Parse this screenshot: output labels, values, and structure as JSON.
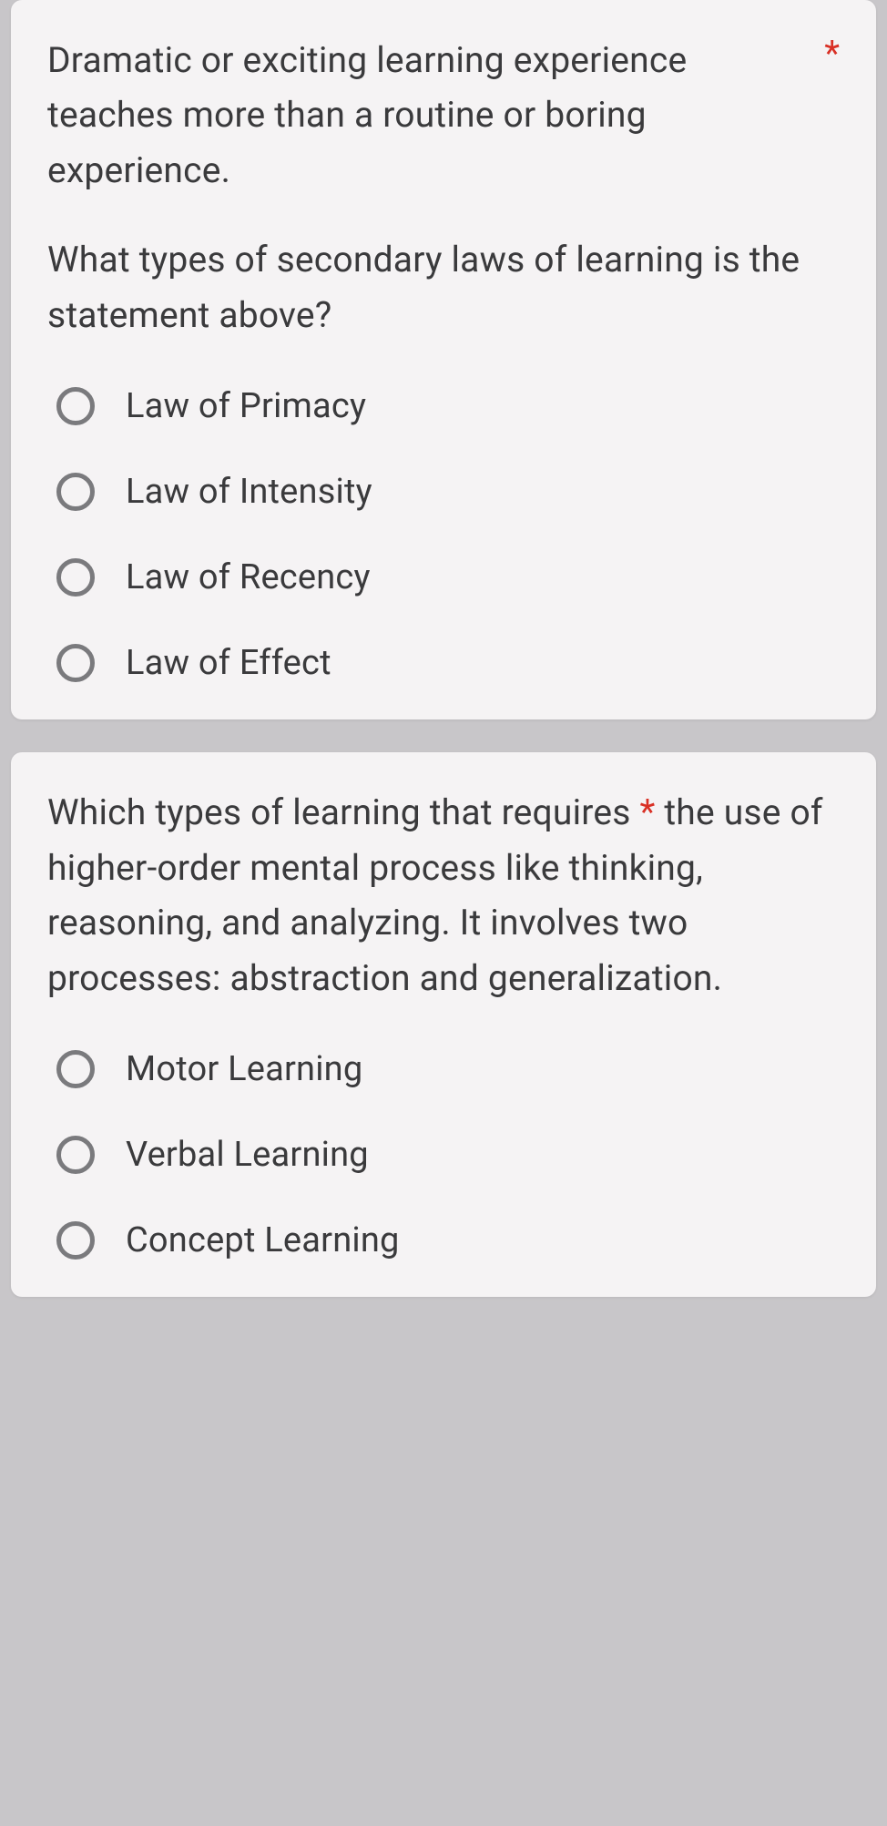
{
  "questions": [
    {
      "text_part1": "Dramatic or exciting learning experience teaches more than a routine or boring experience.",
      "text_part2": "What types of secondary laws of learning is the statement above?",
      "required_marker": "*",
      "required_inline": false,
      "options": [
        {
          "label": "Law of Primacy"
        },
        {
          "label": "Law of Intensity"
        },
        {
          "label": "Law of Recency"
        },
        {
          "label": "Law of Effect"
        }
      ]
    },
    {
      "text_part1": "Which types of learning that requires",
      "text_part2": "the use of higher-order mental process like thinking, reasoning, and analyzing. It involves two processes: abstraction and generalization.",
      "required_marker": "*",
      "required_inline": true,
      "options": [
        {
          "label": "Motor Learning"
        },
        {
          "label": "Verbal Learning"
        },
        {
          "label": "Concept Learning"
        }
      ]
    }
  ],
  "colors": {
    "page_bg": "#c8c6c9",
    "card_bg": "#f5f3f4",
    "text": "#3a3a3c",
    "required": "#d93025",
    "radio_border": "#7a7a7d"
  }
}
